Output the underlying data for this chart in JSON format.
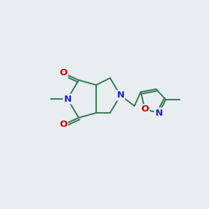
{
  "bg_color": "#e8edf0",
  "bond_color": "#3a7a5a",
  "bond_width": 1.5,
  "atom_colors": {
    "N": "#2222cc",
    "O": "#cc0000",
    "C": "#3a7a5a"
  },
  "font_size": 9.5
}
